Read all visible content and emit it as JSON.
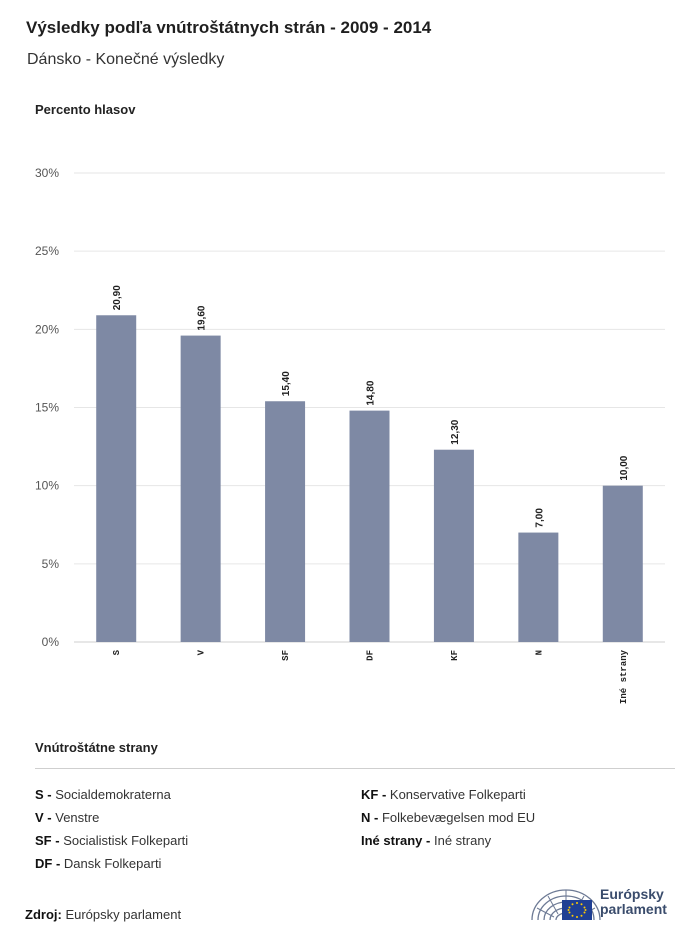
{
  "title": "Výsledky podľa vnútroštátnych strán - 2009 - 2014",
  "subtitle": "Dánsko - Konečné výsledky",
  "colors": {
    "bar": "#7e89a4",
    "grid": "#e6e6e6",
    "axis_text": "#555555",
    "logo": "#3a4c6c"
  },
  "chart_data": {
    "type": "bar",
    "ylabel": "Percento hlasov",
    "categories": [
      "S",
      "V",
      "SF",
      "DF",
      "KF",
      "N",
      "Iné strany"
    ],
    "values": [
      20.9,
      19.6,
      15.4,
      14.8,
      12.3,
      7.0,
      10.0
    ],
    "value_labels": [
      "20,90",
      "19,60",
      "15,40",
      "14,80",
      "12,30",
      "7,00",
      "10,00"
    ],
    "ylim": [
      0,
      30
    ],
    "yticks": [
      0,
      5,
      10,
      15,
      20,
      25,
      30
    ],
    "ytick_labels": [
      "0%",
      "5%",
      "10%",
      "15%",
      "20%",
      "25%",
      "30%"
    ],
    "grid": true
  },
  "legend": {
    "title": "Vnútroštátne strany",
    "left": [
      {
        "abbr": "S -",
        "name": "Socialdemokraterna"
      },
      {
        "abbr": "V -",
        "name": "Venstre"
      },
      {
        "abbr": "SF -",
        "name": "Socialistisk Folkeparti"
      },
      {
        "abbr": "DF -",
        "name": "Dansk Folkeparti"
      }
    ],
    "right": [
      {
        "abbr": "KF -",
        "name": "Konservative Folkeparti"
      },
      {
        "abbr": "N -",
        "name": "Folkebevægelsen mod EU"
      },
      {
        "abbr": "Iné strany -",
        "name": "Iné strany"
      }
    ]
  },
  "source": {
    "label": "Zdroj:",
    "value": "Európsky parlament"
  },
  "logo": {
    "line1": "Európsky",
    "line2": "parlament",
    "icon": "european-parliament-hemicycle-icon"
  }
}
